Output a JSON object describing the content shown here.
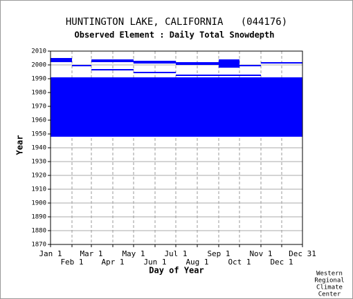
{
  "chart_data": {
    "type": "availability",
    "title": "HUNTINGTON LAKE, CALIFORNIA   (044176)",
    "subtitle": "Observed Element : Daily Total Snowdepth",
    "x_label": "Day of Year",
    "y_label": "Year",
    "credit": [
      "Western",
      "Regional",
      "Climate",
      "Center"
    ],
    "color": "#0000ff",
    "grid": true,
    "xlim": [
      1,
      365
    ],
    "xticks": [
      {
        "value": 1,
        "label": "Jan 1"
      },
      {
        "value": 32,
        "label": "Feb 1"
      },
      {
        "value": 60,
        "label": "Mar 1"
      },
      {
        "value": 91,
        "label": "Apr 1"
      },
      {
        "value": 121,
        "label": "May 1"
      },
      {
        "value": 152,
        "label": "Jun 1"
      },
      {
        "value": 182,
        "label": "Jul 1"
      },
      {
        "value": 213,
        "label": "Aug 1"
      },
      {
        "value": 244,
        "label": "Sep 1"
      },
      {
        "value": 274,
        "label": "Oct 1"
      },
      {
        "value": 305,
        "label": "Nov 1"
      },
      {
        "value": 335,
        "label": "Dec 1"
      },
      {
        "value": 365,
        "label": "Dec 31"
      }
    ],
    "ylim": [
      1870,
      2010
    ],
    "yticks": [
      1870,
      1880,
      1890,
      1900,
      1910,
      1920,
      1930,
      1940,
      1950,
      1960,
      1970,
      1980,
      1990,
      2000,
      2010
    ],
    "segments": [
      {
        "years": [
          1948,
          1991
        ],
        "days": [
          1,
          365
        ]
      },
      {
        "years": [
          2002,
          2005
        ],
        "days": [
          1,
          32
        ]
      },
      {
        "years": [
          2002,
          2004
        ],
        "days": [
          60,
          121
        ]
      },
      {
        "years": [
          2001,
          2003
        ],
        "days": [
          121,
          182
        ]
      },
      {
        "years": [
          2000,
          2002
        ],
        "days": [
          182,
          244
        ]
      },
      {
        "years": [
          1998,
          2004
        ],
        "days": [
          244,
          274
        ]
      },
      {
        "years": [
          1999,
          2000
        ],
        "days": [
          274,
          305
        ]
      },
      {
        "years": [
          2001,
          2002
        ],
        "days": [
          305,
          365
        ]
      },
      {
        "years": [
          1999,
          2000
        ],
        "days": [
          32,
          60
        ]
      },
      {
        "years": [
          1994,
          1995
        ],
        "days": [
          121,
          182
        ]
      },
      {
        "years": [
          1992,
          1993
        ],
        "days": [
          182,
          305
        ]
      },
      {
        "years": [
          1996,
          1997
        ],
        "days": [
          60,
          121
        ]
      }
    ]
  }
}
